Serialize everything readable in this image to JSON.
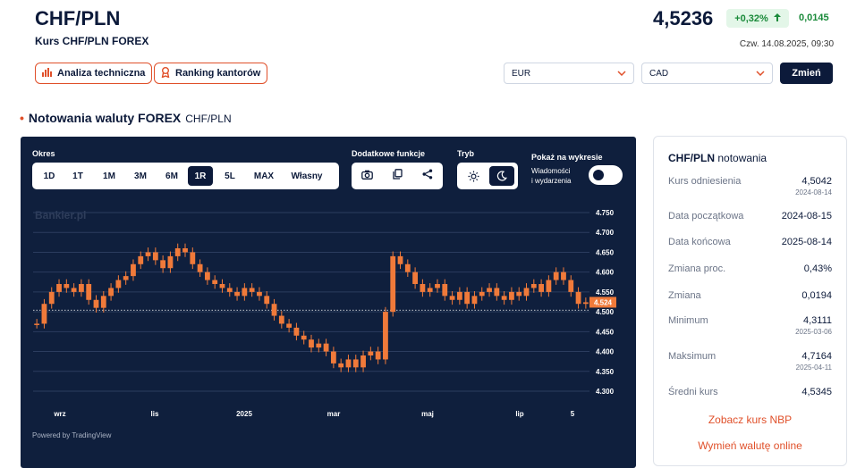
{
  "header": {
    "pair": "CHF/PLN",
    "subtitle": "Kurs CHF/PLN FOREX",
    "price": "4,5236",
    "change_pct": "+0,32%",
    "change_abs": "0,0145",
    "timestamp": "Czw. 14.08.2025, 09:30"
  },
  "actions": {
    "technical_analysis": "Analiza techniczna",
    "exchange_ranking": "Ranking kantorów"
  },
  "currency_switch": {
    "first": "EUR",
    "second": "CAD",
    "submit": "Zmień"
  },
  "section": {
    "title": "Notowania waluty FOREX",
    "pair": "CHF/PLN"
  },
  "chart_controls": {
    "period_label": "Okres",
    "periods": [
      "1D",
      "1T",
      "1M",
      "3M",
      "6M",
      "1R",
      "5L",
      "MAX",
      "Własny"
    ],
    "active_period": "1R",
    "extra_label": "Dodatkowe funkcje",
    "mode_label": "Tryb",
    "show_label": "Pokaż na wykresie",
    "news_toggle_line1": "Wiadomości",
    "news_toggle_line2": "i wydarzenia",
    "watermark": "Bankier.pl",
    "powered": "Powered by TradingView"
  },
  "colors": {
    "navy": "#0c1a3a",
    "panel": "#0f1f3d",
    "candle": "#f07a3a",
    "accent": "#e0502a",
    "green": "#1a8a3a"
  },
  "icons": {
    "analysis": "bar-chart-icon",
    "ranking": "award-icon",
    "camera": "camera-icon",
    "copy": "copy-icon",
    "share": "share-icon",
    "light": "sun-icon",
    "dark": "moon-icon",
    "badge_arrow": "arrow-up-icon",
    "select": "chevron-down-icon"
  },
  "chart_data": {
    "type": "line",
    "title": "",
    "xlabel": "",
    "ylabel": "",
    "ylim": [
      4.3,
      4.75
    ],
    "y_ticks": [
      "4.750",
      "4.700",
      "4.650",
      "4.600",
      "4.550",
      "4.500",
      "4.450",
      "4.400",
      "4.350",
      "4.300"
    ],
    "x_ticks": [
      "wrz",
      "lis",
      "2025",
      "mar",
      "maj",
      "lip",
      "5"
    ],
    "last_label": "4.524",
    "last_value": 4.524,
    "reference_value": 4.5042,
    "series": [
      {
        "values": [
          4.47,
          4.52,
          4.55,
          4.57,
          4.56,
          4.55,
          4.57,
          4.53,
          4.51,
          4.54,
          4.56,
          4.58,
          4.59,
          4.62,
          4.64,
          4.65,
          4.63,
          4.61,
          4.64,
          4.66,
          4.65,
          4.62,
          4.6,
          4.58,
          4.57,
          4.56,
          4.55,
          4.54,
          4.56,
          4.55,
          4.54,
          4.52,
          4.49,
          4.47,
          4.46,
          4.44,
          4.43,
          4.41,
          4.42,
          4.4,
          4.37,
          4.36,
          4.38,
          4.36,
          4.39,
          4.4,
          4.38,
          4.5,
          4.64,
          4.62,
          4.6,
          4.57,
          4.55,
          4.56,
          4.57,
          4.54,
          4.53,
          4.55,
          4.52,
          4.54,
          4.55,
          4.56,
          4.54,
          4.53,
          4.55,
          4.54,
          4.56,
          4.57,
          4.55,
          4.58,
          4.6,
          4.58,
          4.55,
          4.52,
          4.524
        ]
      }
    ]
  },
  "sidebar": {
    "title": "CHF/PLN",
    "title_suffix": "notowania",
    "rows": [
      {
        "label": "Kurs odniesienia",
        "value": "4,5042",
        "date": "2024-08-14"
      },
      {
        "label": "Data początkowa",
        "value": "2024-08-15"
      },
      {
        "label": "Data końcowa",
        "value": "2025-08-14"
      },
      {
        "label": "Zmiana proc.",
        "value": "0,43%"
      },
      {
        "label": "Zmiana",
        "value": "0,0194"
      },
      {
        "label": "Minimum",
        "value": "4,3111",
        "date": "2025-03-06"
      },
      {
        "label": "Maksimum",
        "value": "4,7164",
        "date": "2025-04-11"
      },
      {
        "label": "Średni kurs",
        "value": "4,5345"
      }
    ],
    "link_nbp": "Zobacz kurs NBP",
    "link_exchange": "Wymień walutę online"
  }
}
